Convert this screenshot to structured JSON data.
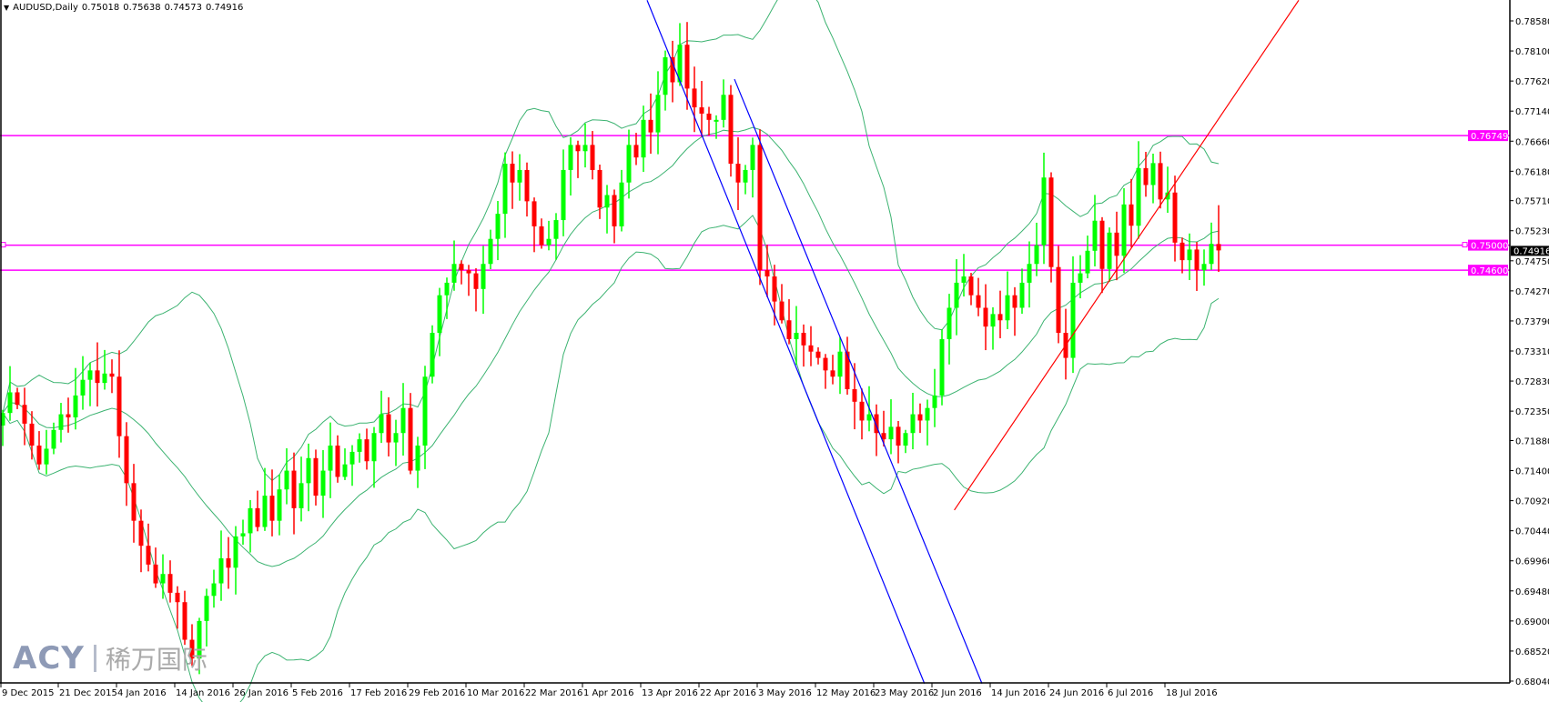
{
  "header": {
    "symbol": "AUDUSD,Daily",
    "open": "0.75018",
    "high": "0.75638",
    "low": "0.74573",
    "close": "0.74916"
  },
  "watermark": {
    "brand": "ACY",
    "cn": "稀万国际"
  },
  "colors": {
    "bull": "#00ff00",
    "bear": "#ff0000",
    "bands": "#3cb371",
    "level": "#ff00ff",
    "channel": "#0000ff",
    "trend": "#ff0000"
  },
  "chart_data": {
    "type": "candlestick",
    "title": "AUDUSD,Daily",
    "ylim": [
      0.6804,
      0.7858
    ],
    "y_ticks": [
      "0.78580",
      "0.78100",
      "0.77620",
      "0.77140",
      "0.76660",
      "0.76180",
      "0.75710",
      "0.75230",
      "0.74750",
      "0.74270",
      "0.73790",
      "0.73310",
      "0.72830",
      "0.72350",
      "0.71880",
      "0.71400",
      "0.70920",
      "0.70440",
      "0.69960",
      "0.69480",
      "0.69000",
      "0.68520",
      "0.68040"
    ],
    "x_ticks": [
      {
        "bar": 0,
        "label": "9 Dec 2015"
      },
      {
        "bar": 8,
        "label": "21 Dec 2015"
      },
      {
        "bar": 16,
        "label": "4 Jan 2016"
      },
      {
        "bar": 24,
        "label": "14 Jan 2016"
      },
      {
        "bar": 32,
        "label": "26 Jan 2016"
      },
      {
        "bar": 40,
        "label": "5 Feb 2016"
      },
      {
        "bar": 48,
        "label": "17 Feb 2016"
      },
      {
        "bar": 56,
        "label": "29 Feb 2016"
      },
      {
        "bar": 64,
        "label": "10 Mar 2016"
      },
      {
        "bar": 72,
        "label": "22 Mar 2016"
      },
      {
        "bar": 80,
        "label": "1 Apr 2016"
      },
      {
        "bar": 88,
        "label": "13 Apr 2016"
      },
      {
        "bar": 96,
        "label": "22 Apr 2016"
      },
      {
        "bar": 104,
        "label": "3 May 2016"
      },
      {
        "bar": 112,
        "label": "12 May 2016"
      },
      {
        "bar": 120,
        "label": "23 May 2016"
      },
      {
        "bar": 128,
        "label": "2 Jun 2016"
      },
      {
        "bar": 136,
        "label": "14 Jun 2016"
      },
      {
        "bar": 144,
        "label": "24 Jun 2016"
      },
      {
        "bar": 152,
        "label": "6 Jul 2016"
      },
      {
        "bar": 160,
        "label": "18 Jul 2016"
      }
    ],
    "closes": [
      0.7232,
      0.7265,
      0.7245,
      0.7215,
      0.718,
      0.715,
      0.7175,
      0.7205,
      0.723,
      0.7225,
      0.726,
      0.7285,
      0.73,
      0.728,
      0.7295,
      0.729,
      0.7195,
      0.712,
      0.706,
      0.702,
      0.699,
      0.696,
      0.6975,
      0.6945,
      0.693,
      0.687,
      0.684,
      0.69,
      0.694,
      0.696,
      0.7,
      0.6985,
      0.7035,
      0.704,
      0.708,
      0.705,
      0.71,
      0.706,
      0.711,
      0.714,
      0.708,
      0.712,
      0.716,
      0.71,
      0.714,
      0.718,
      0.713,
      0.715,
      0.717,
      0.719,
      0.7155,
      0.72,
      0.723,
      0.7185,
      0.72,
      0.724,
      0.714,
      0.718,
      0.729,
      0.736,
      0.742,
      0.744,
      0.747,
      0.746,
      0.7455,
      0.743,
      0.747,
      0.751,
      0.755,
      0.763,
      0.76,
      0.762,
      0.757,
      0.753,
      0.75,
      0.751,
      0.754,
      0.762,
      0.766,
      0.765,
      0.766,
      0.762,
      0.756,
      0.758,
      0.753,
      0.76,
      0.766,
      0.764,
      0.77,
      0.768,
      0.774,
      0.78,
      0.776,
      0.782,
      0.775,
      0.772,
      0.771,
      0.77,
      0.77,
      0.774,
      0.763,
      0.76,
      0.762,
      0.766,
      0.746,
      0.745,
      0.741,
      0.738,
      0.735,
      0.736,
      0.734,
      0.733,
      0.732,
      0.73,
      0.729,
      0.733,
      0.727,
      0.725,
      0.722,
      0.723,
      0.72,
      0.719,
      0.721,
      0.718,
      0.72,
      0.723,
      0.722,
      0.724,
      0.726,
      0.735,
      0.74,
      0.744,
      0.745,
      0.742,
      0.74,
      0.737,
      0.739,
      0.738,
      0.742,
      0.74,
      0.744,
      0.747,
      0.75,
      0.7608,
      0.7465,
      0.736,
      0.732,
      0.744,
      0.7455,
      0.7491,
      0.7539,
      0.7462,
      0.752,
      0.7483,
      0.7565,
      0.7531,
      0.7623,
      0.7596,
      0.7631,
      0.7573,
      0.7584,
      0.7504,
      0.7476,
      0.7493,
      0.746,
      0.747,
      0.7502,
      0.74916
    ],
    "last_bar": {
      "open": 0.75018,
      "high": 0.75638,
      "low": 0.74573,
      "close": 0.74916
    },
    "indicator": "Bollinger Bands",
    "horizontal_levels": [
      {
        "price": 0.76749,
        "label": "0.76749"
      },
      {
        "price": 0.75,
        "label": "0.75000"
      },
      {
        "price": 0.746,
        "label": "0.74600"
      }
    ],
    "current_price": {
      "price": 0.74916,
      "label": "0.74916"
    },
    "trendlines": [
      {
        "name": "channel-upper",
        "color": "#0000ff",
        "p1": [
          88.5,
          0.7891
        ],
        "p2": [
          126.6,
          0.68
        ]
      },
      {
        "name": "channel-lower",
        "color": "#0000ff",
        "p1": [
          100.5,
          0.7765
        ],
        "p2": [
          134.5,
          0.68
        ]
      },
      {
        "name": "uptrend",
        "color": "#ff0000",
        "p1": [
          130.7,
          0.7077
        ],
        "p2": [
          178,
          0.7891
        ]
      }
    ]
  }
}
